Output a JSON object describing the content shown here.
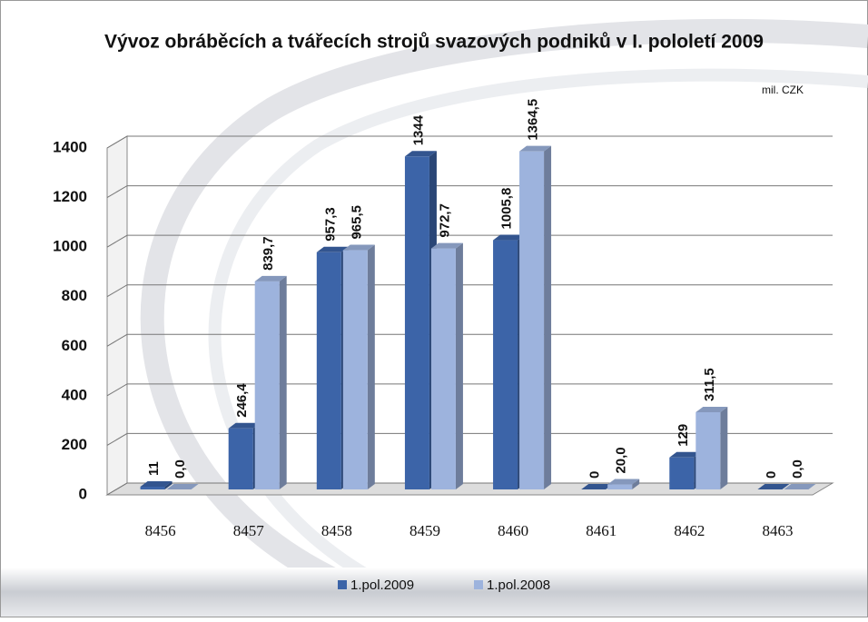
{
  "chart_data": {
    "type": "bar3d",
    "title": "Vývoz obráběcích a tvářecích strojů svazových podniků v I. pololetí 2009",
    "unit": "mil. CZK",
    "categories": [
      "8456",
      "8457",
      "8458",
      "8459",
      "8460",
      "8461",
      "8462",
      "8463"
    ],
    "series": [
      {
        "name": "1.pol.2009",
        "color": "#3c64a8",
        "values": [
          11,
          246.4,
          957.3,
          1344,
          1005.8,
          0,
          129,
          0
        ],
        "value_labels": [
          "11",
          "246,4",
          "957,3",
          "1344",
          "1005,8",
          "0",
          "129",
          "0"
        ]
      },
      {
        "name": "1.pol.2008",
        "color": "#9db3dd",
        "values": [
          0,
          839.7,
          965.5,
          972.7,
          1364.5,
          20,
          311.5,
          0
        ],
        "value_labels": [
          "0,0",
          "839,7",
          "965,5",
          "972,7",
          "1364,5",
          "20,0",
          "311,5",
          "0,0"
        ]
      }
    ],
    "ylim": [
      0,
      1400
    ],
    "yticks": [
      0,
      200,
      400,
      600,
      800,
      1000,
      1200,
      1400
    ],
    "grid": true
  }
}
